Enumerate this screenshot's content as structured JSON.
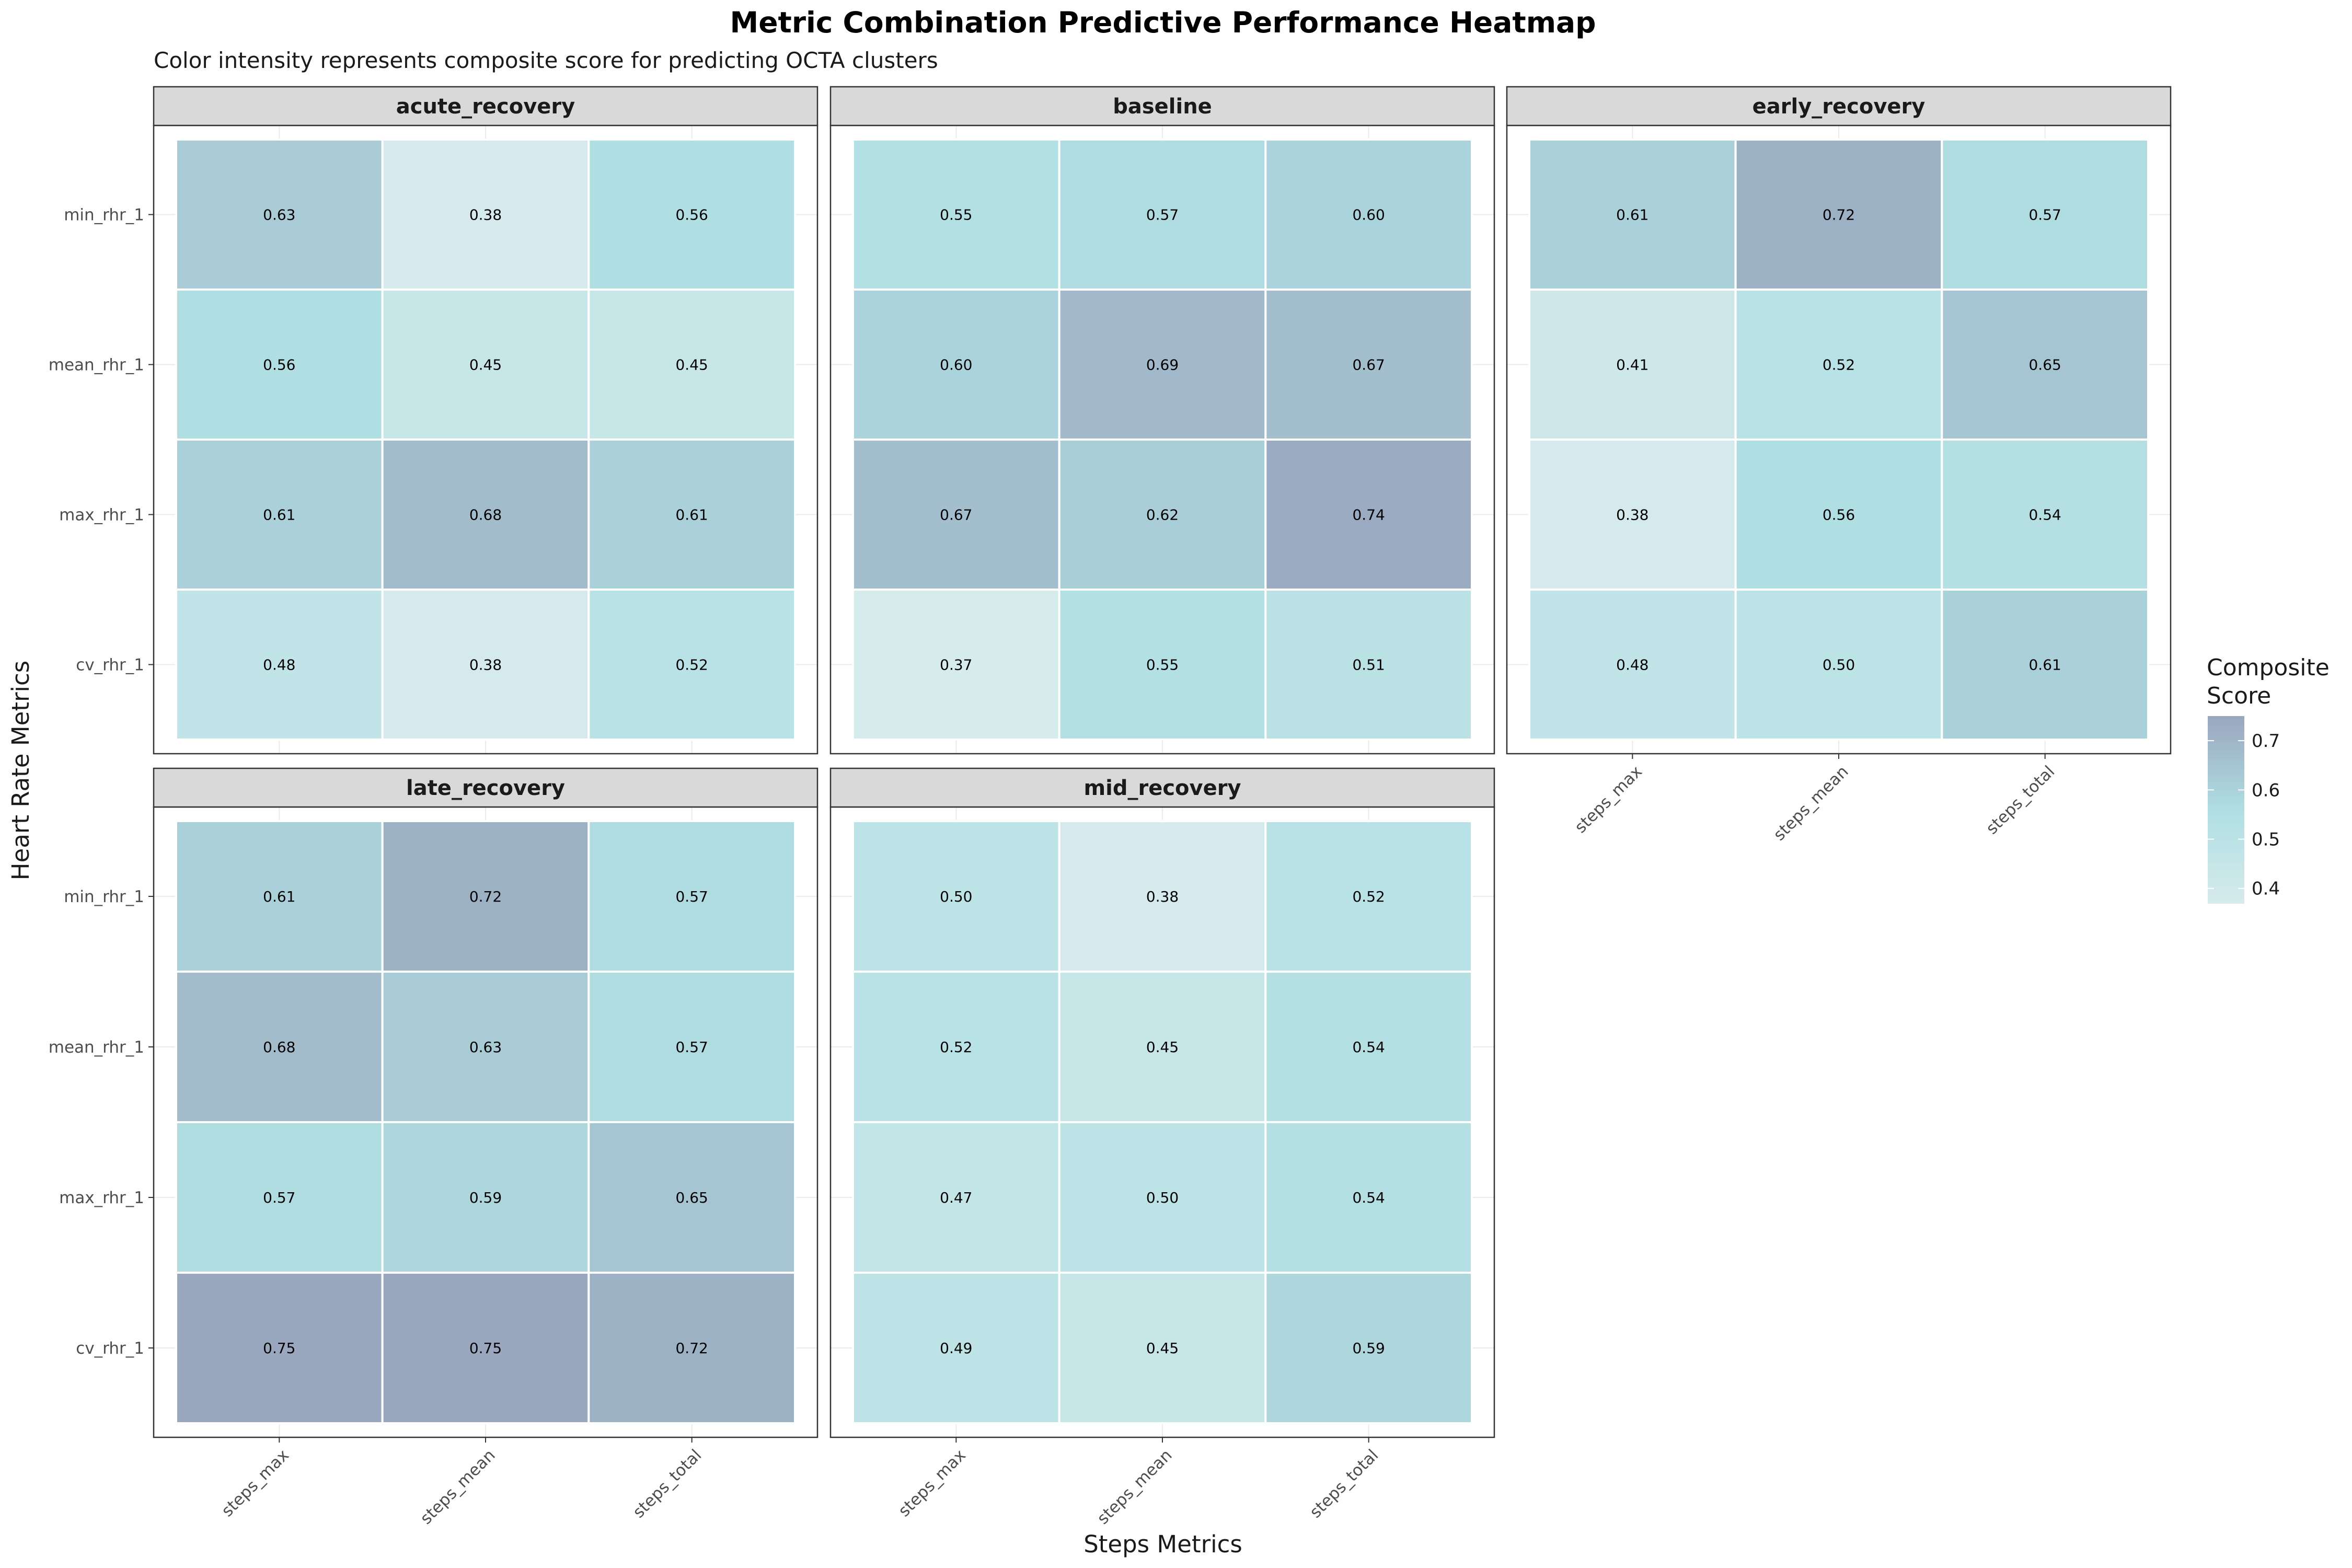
{
  "chart_data": {
    "type": "heatmap",
    "title": "Metric Combination Predictive Performance Heatmap",
    "subtitle": "Color intensity represents composite score for predicting OCTA clusters",
    "xlabel": "Steps Metrics",
    "ylabel": "Heart Rate Metrics",
    "x_categories": [
      "steps_max",
      "steps_mean",
      "steps_total"
    ],
    "y_categories": [
      "min_rhr_1",
      "mean_rhr_1",
      "max_rhr_1",
      "cv_rhr_1"
    ],
    "legend": {
      "title_lines": [
        "Composite",
        "Score"
      ],
      "ticks": [
        0.4,
        0.5,
        0.6,
        0.7
      ],
      "tick_labels": [
        "0.4",
        "0.5",
        "0.6",
        "0.7"
      ],
      "range": [
        0.37,
        0.75
      ],
      "position": "right",
      "low_color": "#d6ebec",
      "mid_color": "#b0dfe3",
      "high_color": "#9aa8bf"
    },
    "grid": true,
    "panels": [
      {
        "name": "acute_recovery",
        "values": [
          [
            0.63,
            0.38,
            0.56
          ],
          [
            0.56,
            0.45,
            0.45
          ],
          [
            0.61,
            0.68,
            0.61
          ],
          [
            0.48,
            0.38,
            0.52
          ]
        ],
        "labels": [
          [
            "0.63",
            "0.38",
            "0.56"
          ],
          [
            "0.56",
            "0.45",
            "0.45"
          ],
          [
            "0.61",
            "0.68",
            "0.61"
          ],
          [
            "0.48",
            "0.38",
            "0.52"
          ]
        ]
      },
      {
        "name": "baseline",
        "values": [
          [
            0.55,
            0.57,
            0.6
          ],
          [
            0.6,
            0.69,
            0.67
          ],
          [
            0.67,
            0.62,
            0.74
          ],
          [
            0.37,
            0.55,
            0.51
          ]
        ],
        "labels": [
          [
            "0.55",
            "0.57",
            "0.60"
          ],
          [
            "0.60",
            "0.69",
            "0.67"
          ],
          [
            "0.67",
            "0.62",
            "0.74"
          ],
          [
            "0.37",
            "0.55",
            "0.51"
          ]
        ]
      },
      {
        "name": "early_recovery",
        "values": [
          [
            0.61,
            0.72,
            0.57
          ],
          [
            0.41,
            0.52,
            0.65
          ],
          [
            0.38,
            0.56,
            0.54
          ],
          [
            0.48,
            0.5,
            0.61
          ]
        ],
        "labels": [
          [
            "0.61",
            "0.72",
            "0.57"
          ],
          [
            "0.41",
            "0.52",
            "0.65"
          ],
          [
            "0.38",
            "0.56",
            "0.54"
          ],
          [
            "0.48",
            "0.50",
            "0.61"
          ]
        ]
      },
      {
        "name": "late_recovery",
        "values": [
          [
            0.61,
            0.72,
            0.57
          ],
          [
            0.68,
            0.63,
            0.57
          ],
          [
            0.57,
            0.59,
            0.65
          ],
          [
            0.75,
            0.75,
            0.72
          ]
        ],
        "labels": [
          [
            "0.61",
            "0.72",
            "0.57"
          ],
          [
            "0.68",
            "0.63",
            "0.57"
          ],
          [
            "0.57",
            "0.59",
            "0.65"
          ],
          [
            "0.75",
            "0.75",
            "0.72"
          ]
        ]
      },
      {
        "name": "mid_recovery",
        "values": [
          [
            0.5,
            0.38,
            0.52
          ],
          [
            0.52,
            0.45,
            0.54
          ],
          [
            0.47,
            0.5,
            0.54
          ],
          [
            0.49,
            0.45,
            0.59
          ]
        ],
        "labels": [
          [
            "0.50",
            "0.38",
            "0.52"
          ],
          [
            "0.52",
            "0.45",
            "0.54"
          ],
          [
            "0.47",
            "0.50",
            "0.54"
          ],
          [
            "0.49",
            "0.45",
            "0.59"
          ]
        ]
      }
    ]
  }
}
